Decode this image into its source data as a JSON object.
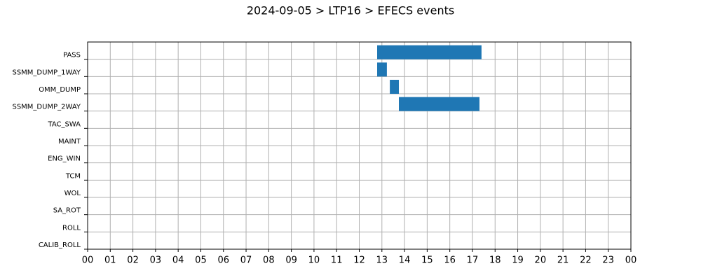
{
  "chart_data": {
    "type": "gantt",
    "title": "2024-09-05 > LTP16 > EFECS events",
    "categories": [
      "PASS",
      "SSMM_DUMP_1WAY",
      "OMM_DUMP",
      "SSMM_DUMP_2WAY",
      "TAC_SWA",
      "MAINT",
      "ENG_WIN",
      "TCM",
      "WOL",
      "SA_ROT",
      "ROLL",
      "CALIB_ROLL"
    ],
    "start": [
      12.79,
      12.79,
      13.35,
      13.75,
      null,
      null,
      null,
      null,
      null,
      null,
      null,
      null
    ],
    "end": [
      17.4,
      13.22,
      13.75,
      17.31,
      null,
      null,
      null,
      null,
      null,
      null,
      null,
      null
    ],
    "color": "#1f77b4",
    "xlim": [
      0,
      24
    ],
    "xticks": [
      {
        "value": 0,
        "label": "00"
      },
      {
        "value": 1,
        "label": "01"
      },
      {
        "value": 2,
        "label": "02"
      },
      {
        "value": 3,
        "label": "03"
      },
      {
        "value": 4,
        "label": "04"
      },
      {
        "value": 5,
        "label": "05"
      },
      {
        "value": 6,
        "label": "06"
      },
      {
        "value": 7,
        "label": "07"
      },
      {
        "value": 8,
        "label": "08"
      },
      {
        "value": 9,
        "label": "09"
      },
      {
        "value": 10,
        "label": "10"
      },
      {
        "value": 11,
        "label": "11"
      },
      {
        "value": 12,
        "label": "12"
      },
      {
        "value": 13,
        "label": "13"
      },
      {
        "value": 14,
        "label": "14"
      },
      {
        "value": 15,
        "label": "15"
      },
      {
        "value": 16,
        "label": "16"
      },
      {
        "value": 17,
        "label": "17"
      },
      {
        "value": 18,
        "label": "18"
      },
      {
        "value": 19,
        "label": "19"
      },
      {
        "value": 20,
        "label": "20"
      },
      {
        "value": 21,
        "label": "21"
      },
      {
        "value": 22,
        "label": "22"
      },
      {
        "value": 23,
        "label": "23"
      },
      {
        "value": 24,
        "label": "00"
      }
    ],
    "grid": true
  }
}
